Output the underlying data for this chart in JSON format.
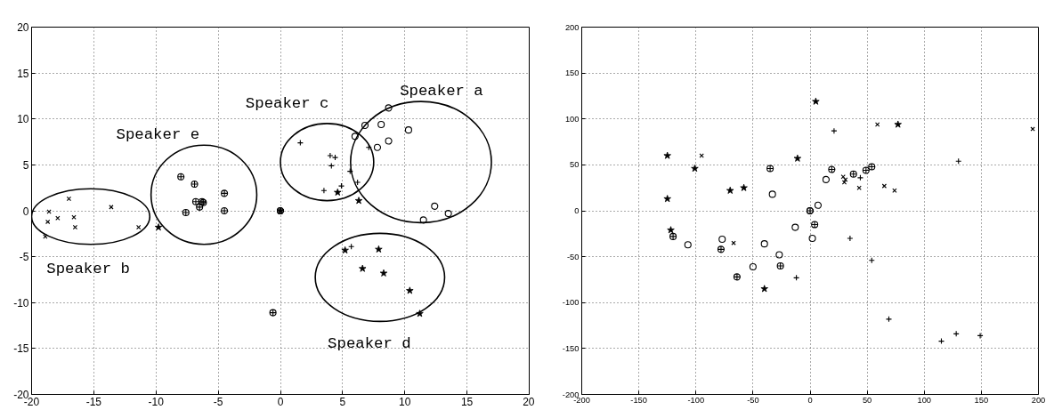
{
  "chart_data": [
    {
      "type": "scatter",
      "xlim": [
        -20,
        20
      ],
      "ylim": [
        -20,
        20
      ],
      "xticks": [
        -20,
        -15,
        -10,
        -5,
        0,
        5,
        10,
        15,
        20
      ],
      "yticks": [
        -20,
        -15,
        -10,
        -5,
        0,
        5,
        10,
        15,
        20
      ],
      "grid": true,
      "series": [
        {
          "marker": "x",
          "color": "#000000",
          "x": [
            -17,
            -18.6,
            -18.7,
            -17.9,
            -16.6,
            -16.5,
            -13.6,
            -11.4,
            -18.9
          ],
          "values": [
            1.3,
            -0.1,
            -1.2,
            -0.8,
            -0.7,
            -1.8,
            0.4,
            -1.8,
            -2.8
          ]
        },
        {
          "marker": "cross",
          "color": "#000000",
          "x": [
            1.6,
            4,
            4.4,
            4.1,
            5.6,
            4.9,
            3.5,
            6.2,
            7.1,
            5.7
          ],
          "values": [
            7.4,
            6,
            5.8,
            4.9,
            4.3,
            2.7,
            2.2,
            3.1,
            6.9,
            -3.9
          ]
        },
        {
          "marker": "circle",
          "color": "#000000",
          "x": [
            8.7,
            6.8,
            8.1,
            10.3,
            6,
            8.7,
            7.8,
            12.4,
            13.5,
            11.5,
            0
          ],
          "values": [
            11.2,
            9.3,
            9.4,
            8.8,
            8.1,
            7.6,
            6.9,
            0.5,
            -0.3,
            -1,
            0
          ]
        },
        {
          "marker": "star",
          "color": "#000000",
          "x": [
            -9.8,
            4.6,
            6.3,
            5.2,
            7.9,
            6.6,
            8.3,
            10.4,
            11.2,
            0
          ],
          "values": [
            -1.8,
            2,
            1.1,
            -4.3,
            -4.2,
            -6.3,
            -6.8,
            -8.7,
            -11.2,
            0
          ]
        },
        {
          "marker": "circle_cross",
          "color": "#000000",
          "x": [
            -8,
            -6.9,
            -4.5,
            -6.8,
            -6.3,
            -6.5,
            -7.6,
            -4.5,
            -6.2,
            0,
            -0.6
          ],
          "values": [
            3.7,
            2.9,
            1.9,
            1,
            1,
            0.4,
            -0.2,
            0,
            0.9,
            0,
            -11.1
          ]
        }
      ],
      "annotations": [
        "Speaker a",
        "Speaker c",
        "Speaker e",
        "Speaker b",
        "Speaker d"
      ]
    },
    {
      "type": "scatter",
      "xlim": [
        -200,
        200
      ],
      "ylim": [
        -200,
        200
      ],
      "xticks": [
        -200,
        -150,
        -100,
        -50,
        0,
        50,
        100,
        150,
        200
      ],
      "yticks": [
        -200,
        -150,
        -100,
        -50,
        0,
        50,
        100,
        150,
        200
      ],
      "grid": true,
      "series": [
        {
          "marker": "x",
          "color": "#000000",
          "x": [
            -95,
            -67,
            59,
            195,
            29,
            31,
            30,
            43,
            65,
            74
          ],
          "values": [
            60,
            -35,
            94,
            89,
            37,
            34,
            31,
            25,
            27,
            22
          ]
        },
        {
          "marker": "cross",
          "color": "#000000",
          "x": [
            -12,
            21,
            130,
            44,
            35,
            54,
            69,
            115,
            128,
            149
          ],
          "values": [
            -73,
            87,
            54,
            36,
            -30,
            -54,
            -118,
            -142,
            -134,
            -136
          ]
        },
        {
          "marker": "circle",
          "color": "#000000",
          "x": [
            -107,
            -77,
            -40,
            -50,
            -27,
            -33,
            -13,
            14,
            7,
            2,
            0
          ],
          "values": [
            -37,
            -31,
            -36,
            -61,
            -48,
            18,
            -18,
            34,
            6,
            -30,
            0
          ]
        },
        {
          "marker": "star",
          "color": "#000000",
          "x": [
            -125,
            -101,
            -125,
            -122,
            -70,
            -58,
            -11,
            -40,
            5,
            77
          ],
          "values": [
            60,
            46,
            13,
            -21,
            22,
            25,
            57,
            -85,
            119,
            94
          ]
        },
        {
          "marker": "circle_cross",
          "color": "#000000",
          "x": [
            -35,
            -120,
            -78,
            -64,
            -26,
            19,
            38,
            49,
            54,
            4,
            0
          ],
          "values": [
            46,
            -28,
            -42,
            -72,
            -60,
            45,
            40,
            44,
            48,
            -15,
            0
          ]
        }
      ]
    }
  ]
}
